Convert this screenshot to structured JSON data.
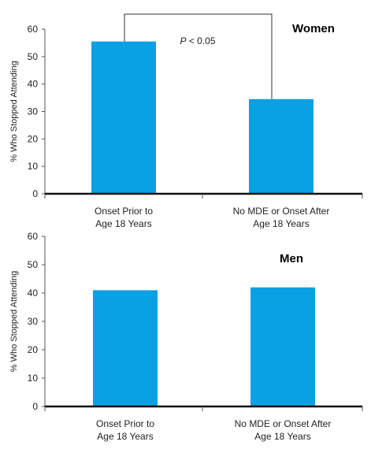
{
  "chart_data": [
    {
      "type": "bar",
      "title": "Women",
      "ylabel": "% Who Stopped Attending",
      "ylim": [
        0,
        60
      ],
      "yticks": [
        0,
        10,
        20,
        30,
        40,
        50,
        60
      ],
      "categories": [
        [
          "Onset Prior to",
          "Age 18 Years"
        ],
        [
          "No MDE or Onset After",
          "Age 18 Years"
        ]
      ],
      "values": [
        55.5,
        34.5
      ],
      "bar_color": "#0aa0e4",
      "annotation": {
        "prefix": "P",
        "text": " < 0.05"
      },
      "grid": false
    },
    {
      "type": "bar",
      "title": "Men",
      "ylabel": "% Who Stopped Attending",
      "ylim": [
        0,
        60
      ],
      "yticks": [
        0,
        10,
        20,
        30,
        40,
        50,
        60
      ],
      "categories": [
        [
          "Onset Prior to",
          "Age 18 Years"
        ],
        [
          "No MDE or Onset After",
          "Age 18 Years"
        ]
      ],
      "values": [
        41,
        42
      ],
      "bar_color": "#0aa0e4",
      "grid": false
    }
  ]
}
